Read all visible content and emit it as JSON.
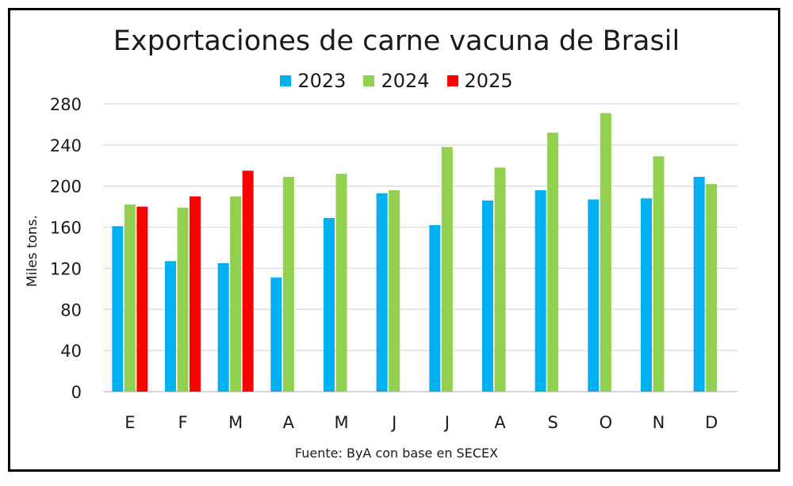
{
  "chart_data": {
    "type": "bar",
    "title": "Exportaciones de carne vacuna de Brasil",
    "ylabel": "Miles tons.",
    "xlabel": "",
    "source": "Fuente: ByA con base en SECEX",
    "ylim": [
      0,
      280
    ],
    "yticks": [
      0,
      40,
      80,
      120,
      160,
      200,
      240,
      280
    ],
    "grid": true,
    "legend_position": "top",
    "categories": [
      "E",
      "F",
      "M",
      "A",
      "M",
      "J",
      "J",
      "A",
      "S",
      "O",
      "N",
      "D"
    ],
    "series": [
      {
        "name": "2023",
        "color": "#00b0f0",
        "values": [
          161,
          127,
          125,
          111,
          169,
          193,
          162,
          186,
          196,
          187,
          188,
          209
        ]
      },
      {
        "name": "2024",
        "color": "#92d050",
        "values": [
          182,
          179,
          190,
          209,
          212,
          196,
          238,
          218,
          252,
          271,
          229,
          202
        ]
      },
      {
        "name": "2025",
        "color": "#ff0000",
        "values": [
          180,
          190,
          215,
          null,
          null,
          null,
          null,
          null,
          null,
          null,
          null,
          null
        ]
      }
    ]
  }
}
